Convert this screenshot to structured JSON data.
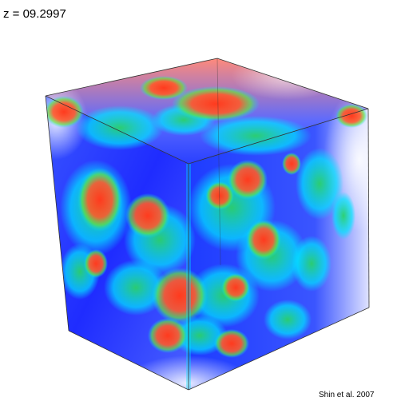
{
  "redshift_label": "z = 09.2997",
  "credit": "Shin et al. 2007",
  "colors": {
    "background": "#ffffff",
    "volume_base": "#1f2cff",
    "ionized_region": "#ff3a1e",
    "front_edge": "#00e6ff",
    "shell": "#22dd66",
    "cube_edges": "#333333"
  }
}
